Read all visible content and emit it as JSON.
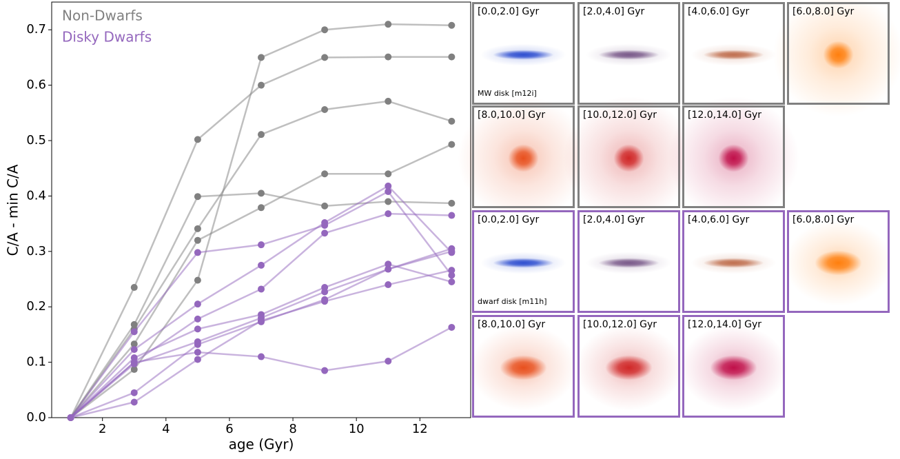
{
  "chart_data": {
    "type": "line",
    "xlabel": "age (Gyr)",
    "ylabel": "C/A - min C/A",
    "xlim": [
      0.4,
      13.6
    ],
    "ylim": [
      0,
      0.75
    ],
    "xticks": [
      2,
      4,
      6,
      8,
      10,
      12
    ],
    "yticks": [
      {
        "value": 0,
        "label": "0.0"
      },
      0.1,
      0.2,
      0.3,
      0.4,
      0.5,
      0.6,
      0.7
    ],
    "x": [
      1,
      3,
      5,
      7,
      9,
      11,
      13
    ],
    "series": [
      {
        "name": "Non-Dwarfs",
        "color": "#808080",
        "values": [
          0,
          0.235,
          0.502,
          0.6,
          0.65,
          0.651,
          0.651
        ]
      },
      {
        "values": [
          0,
          0.168,
          0.399,
          0.405,
          0.382,
          0.39,
          0.387
        ],
        "color": "#808080"
      },
      {
        "values": [
          0,
          0.16,
          0.341,
          0.511,
          0.556,
          0.571,
          0.535
        ],
        "color": "#808080"
      },
      {
        "values": [
          0,
          0.133,
          0.32,
          0.379,
          0.44,
          0.44,
          0.493
        ],
        "color": "#808080"
      },
      {
        "values": [
          0,
          0.087,
          0.248,
          0.65,
          0.7,
          0.71,
          0.708
        ],
        "color": "#808080"
      },
      {
        "name": "Disky Dwarfs",
        "color": "#9467bd",
        "values": [
          0,
          0.155,
          0.298,
          0.312,
          0.347,
          0.408,
          0.257
        ]
      },
      {
        "values": [
          0,
          0.123,
          0.205,
          0.275,
          0.352,
          0.418,
          0.298
        ],
        "color": "#9467bd"
      },
      {
        "values": [
          0,
          0.1,
          0.178,
          0.232,
          0.333,
          0.368,
          0.365
        ],
        "color": "#9467bd"
      },
      {
        "values": [
          0,
          0.108,
          0.16,
          0.186,
          0.235,
          0.277,
          0.245
        ],
        "color": "#9467bd"
      },
      {
        "values": [
          0,
          0.097,
          0.137,
          0.18,
          0.227,
          0.268,
          0.305
        ],
        "color": "#9467bd"
      },
      {
        "values": [
          0,
          0.045,
          0.132,
          0.173,
          0.213,
          0.268,
          0.3
        ],
        "color": "#9467bd"
      },
      {
        "values": [
          0,
          0.028,
          0.105,
          0.175,
          0.21,
          0.24,
          0.266
        ],
        "color": "#9467bd"
      },
      {
        "values": [
          0,
          0.1,
          0.118,
          0.11,
          0.085,
          0.102,
          0.163
        ],
        "color": "#9467bd"
      }
    ],
    "legend": "upper left"
  },
  "panel_groups": [
    {
      "border": "#808080",
      "note": "MW disk [m12i]",
      "panels": [
        {
          "label": "[0.0,2.0] Gyr",
          "color": "#2f4fd0",
          "shape": "disk"
        },
        {
          "label": "[2.0,4.0] Gyr",
          "color": "#7a5a8a",
          "shape": "disk"
        },
        {
          "label": "[4.0,6.0] Gyr",
          "color": "#c07050",
          "shape": "disk"
        },
        {
          "label": "[6.0,8.0] Gyr",
          "color": "#ff7f0e",
          "shape": "round"
        },
        {
          "label": "[8.0,10.0] Gyr",
          "color": "#e8501e",
          "shape": "round"
        },
        {
          "label": "[10.0,12.0] Gyr",
          "color": "#d02828",
          "shape": "round"
        },
        {
          "label": "[12.0,14.0] Gyr",
          "color": "#c0104a",
          "shape": "round"
        }
      ]
    },
    {
      "border": "#9467bd",
      "note": "dwarf disk [m11h]",
      "panels": [
        {
          "label": "[0.0,2.0] Gyr",
          "color": "#2f4fd0",
          "shape": "disk"
        },
        {
          "label": "[2.0,4.0] Gyr",
          "color": "#7a5a8a",
          "shape": "disk"
        },
        {
          "label": "[4.0,6.0] Gyr",
          "color": "#c07050",
          "shape": "disk"
        },
        {
          "label": "[6.0,8.0] Gyr",
          "color": "#ff7f0e",
          "shape": "oval"
        },
        {
          "label": "[8.0,10.0] Gyr",
          "color": "#e8501e",
          "shape": "oval"
        },
        {
          "label": "[10.0,12.0] Gyr",
          "color": "#d02828",
          "shape": "oval"
        },
        {
          "label": "[12.0,14.0] Gyr",
          "color": "#c0104a",
          "shape": "oval"
        }
      ]
    }
  ]
}
